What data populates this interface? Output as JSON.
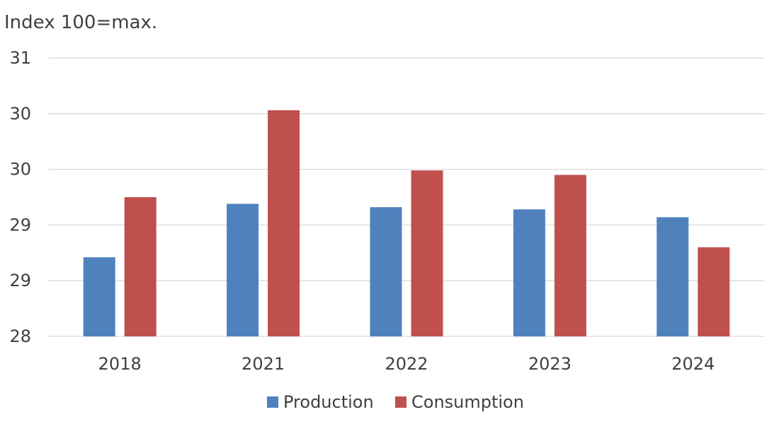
{
  "chart_data": {
    "type": "bar",
    "title": "",
    "unit_label": "Index 100=max.",
    "xlabel": "",
    "ylabel": "",
    "categories": [
      "2018",
      "2021",
      "2022",
      "2023",
      "2024"
    ],
    "y_tick_labels": [
      "28",
      "29",
      "29",
      "30",
      "30",
      "31"
    ],
    "y_tick_values": [
      28.0,
      28.5,
      29.0,
      29.5,
      30.0,
      30.5
    ],
    "ylim": [
      28.0,
      30.5
    ],
    "grid": true,
    "legend_position": "bottom-center",
    "series": [
      {
        "name": "Production",
        "color": "#4f81bd",
        "values": [
          28.71,
          29.19,
          29.16,
          29.14,
          29.07
        ]
      },
      {
        "name": "Consumption",
        "color": "#c0504d",
        "values": [
          29.25,
          30.03,
          29.49,
          29.45,
          28.8
        ]
      }
    ]
  }
}
